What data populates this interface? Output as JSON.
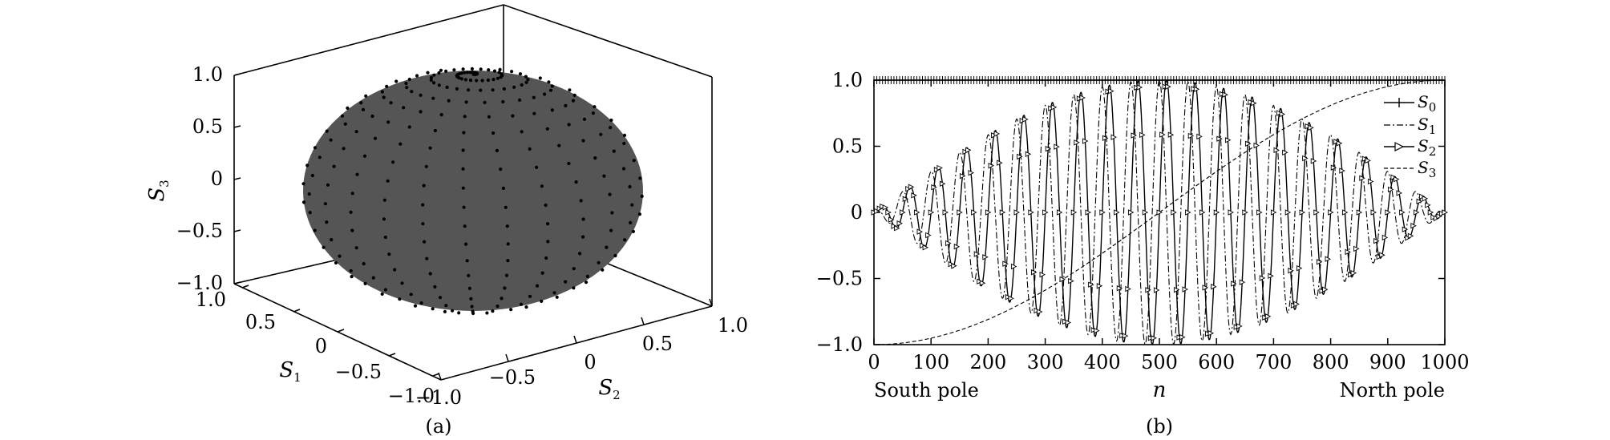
{
  "figure": {
    "panel_a": {
      "caption": "(a)",
      "z_label": "S",
      "z_label_sub": "3",
      "s1_label": "S",
      "s1_label_sub": "1",
      "s2_label": "S",
      "s2_label_sub": "2",
      "z_ticks": [
        "1.0",
        "0.5",
        "0",
        "−0.5",
        "−1.0"
      ],
      "s1_ticks": [
        "1.0",
        "0.5",
        "0",
        "−0.5",
        "−1.0"
      ],
      "s2_ticks": [
        "−1.0",
        "−0.5",
        "0",
        "0.5",
        "1.0"
      ],
      "sphere_color": "#555555"
    },
    "panel_b": {
      "caption": "(b)",
      "x_label": "n",
      "x_left_label": "South pole",
      "x_right_label": "North pole"
    }
  },
  "chart_data": [
    {
      "type": "scatter",
      "panel": "a",
      "description_source": "3D Poincaré sphere with sample points along a spiral from south pole to north pole",
      "axes": {
        "S1": [
          -1.0,
          1.0
        ],
        "S2": [
          -1.0,
          1.0
        ],
        "S3": [
          -1.0,
          1.0
        ]
      },
      "axis_labels": [
        "S1",
        "S2",
        "S3"
      ],
      "grid": false,
      "surface": "unit sphere",
      "points": 1000
    },
    {
      "type": "line",
      "panel": "b",
      "xlabel": "n",
      "xlim": [
        0,
        1000
      ],
      "ylim": [
        -1.0,
        1.0
      ],
      "x_ticks": [
        0,
        100,
        200,
        300,
        400,
        500,
        600,
        700,
        800,
        900,
        1000
      ],
      "y_ticks": [
        "−1.0",
        "−0.5",
        "0",
        "0.5",
        "1.0"
      ],
      "legend_position": "top-right",
      "series": [
        {
          "name": "S",
          "sub": "0",
          "style": "solid with + markers",
          "formula": "1"
        },
        {
          "name": "S",
          "sub": "1",
          "style": "dash-dot",
          "formula": "sin(theta)*cos(phi)"
        },
        {
          "name": "S",
          "sub": "2",
          "style": "solid with triangle markers",
          "formula": "sin(theta)*sin(phi)"
        },
        {
          "name": "S",
          "sub": "3",
          "style": "dashed",
          "formula": "-cos(theta)"
        }
      ],
      "generator": {
        "n_points": 1000,
        "turns": 20
      }
    }
  ]
}
